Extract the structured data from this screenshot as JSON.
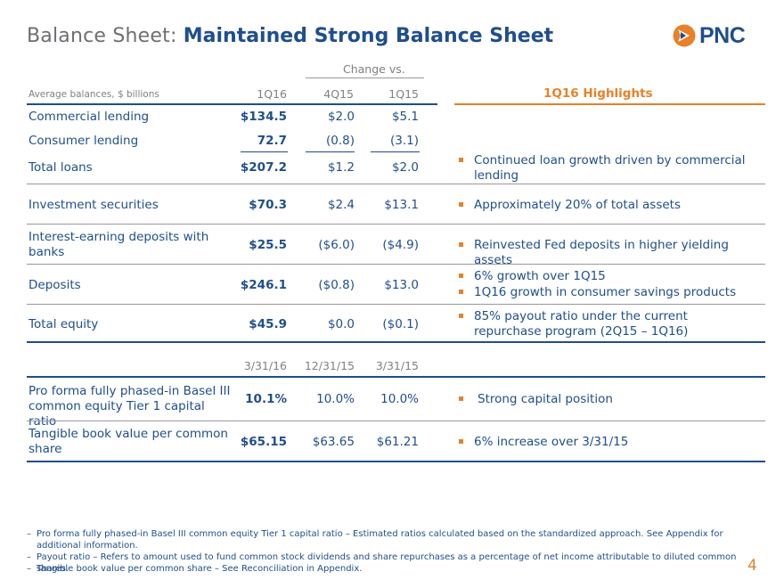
{
  "title": {
    "prefix": "Balance Sheet: ",
    "main": "Maintained Strong Balance Sheet"
  },
  "logo": {
    "text": "PNC"
  },
  "header": {
    "change_vs": "Change vs.",
    "row_label": "Average balances, $ billions",
    "col1": "1Q16",
    "col2": "4Q15",
    "col3": "1Q15",
    "highlights": "1Q16 Highlights"
  },
  "rows": [
    {
      "label": "Commercial lending",
      "v1": "$134.5",
      "v2": "$2.0",
      "v3": "$5.1"
    },
    {
      "label": "Consumer lending",
      "v1": "72.7",
      "v2": "(0.8)",
      "v3": "(3.1)"
    },
    {
      "label": "Total loans",
      "v1": "$207.2",
      "v2": "$1.2",
      "v3": "$2.0"
    },
    {
      "label": "Investment securities",
      "v1": "$70.3",
      "v2": "$2.4",
      "v3": "$13.1"
    },
    {
      "label": "Interest-earning deposits with banks",
      "v1": "$25.5",
      "v2": "($6.0)",
      "v3": "($4.9)"
    },
    {
      "label": "Deposits",
      "v1": "$246.1",
      "v2": "($0.8)",
      "v3": "$13.0"
    },
    {
      "label": "Total equity",
      "v1": "$45.9",
      "v2": "$0.0",
      "v3": "($0.1)"
    }
  ],
  "highlights": {
    "loans": "Continued loan growth driven by commercial lending",
    "securities": "Approximately 20% of total assets",
    "deposits_banks": "Reinvested Fed deposits in higher yielding assets",
    "deposits_1": "6% growth over 1Q15",
    "deposits_2": "1Q16 growth in consumer savings products",
    "equity": "85% payout ratio under the current repurchase program (2Q15 – 1Q16)"
  },
  "header2": {
    "col1": "3/31/16",
    "col2": "12/31/15",
    "col3": "3/31/15"
  },
  "rows2": [
    {
      "label": "Pro forma fully phased-in Basel III common equity Tier 1 capital ratio",
      "v1": "10.1%",
      "v2": "10.0%",
      "v3": "10.0%",
      "highlight": "Strong capital position"
    },
    {
      "label": "Tangible book value per common share",
      "v1": "$65.15",
      "v2": "$63.65",
      "v3": "$61.21",
      "highlight": "6% increase over 3/31/15"
    }
  ],
  "footnotes": [
    "Pro forma fully phased-in Basel III common equity Tier 1 capital ratio – Estimated ratios calculated based on the standardized approach. See Appendix for additional information.",
    "Payout ratio – Refers to amount used to fund common stock dividends and share repurchases as a percentage of net income attributable to diluted common shares.",
    "Tangible book value per common share – See Reconciliation in Appendix."
  ],
  "footnote_dash": "–",
  "page_number": "4",
  "colors": {
    "brand_blue": "#1f4e8c",
    "accent_orange": "#e8812a",
    "gray": "#808080"
  }
}
